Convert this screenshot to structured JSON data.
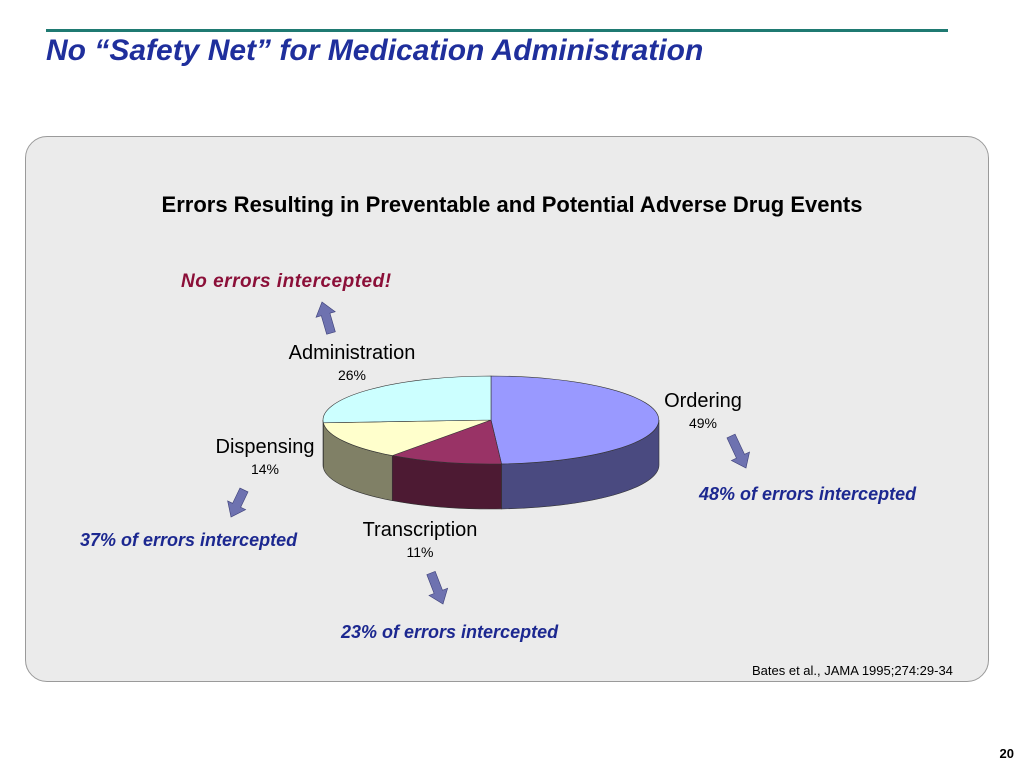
{
  "slide": {
    "title": "No “Safety Net” for Medication Administration",
    "source": "Bates et al., JAMA 1995;274:29-34",
    "page_number": "20"
  },
  "callouts": {
    "administration": "No errors intercepted!",
    "ordering": "48% of errors intercepted",
    "dispensing": "37% of errors intercepted",
    "transcription": "23% of errors intercepted"
  },
  "colors": {
    "title": "#1f2f9c",
    "callout": "#1c2890",
    "callout_alert": "#8b0f38",
    "arrow": "#6e72b0",
    "rule": "#1f7a72"
  },
  "chart_data": {
    "type": "pie",
    "title": "Errors Resulting in Preventable and Potential Adverse Drug Events",
    "three_d": true,
    "slices": [
      {
        "label": "Ordering",
        "value": 49,
        "value_label": "49%",
        "color": "#9999ff",
        "side_color": "#4a4a80"
      },
      {
        "label": "Transcription",
        "value": 11,
        "value_label": "11%",
        "color": "#993366",
        "side_color": "#4d1a33"
      },
      {
        "label": "Dispensing",
        "value": 14,
        "value_label": "14%",
        "color": "#ffffcc",
        "side_color": "#808066"
      },
      {
        "label": "Administration",
        "value": 26,
        "value_label": "26%",
        "color": "#ccffff",
        "side_color": "#668080"
      }
    ]
  }
}
